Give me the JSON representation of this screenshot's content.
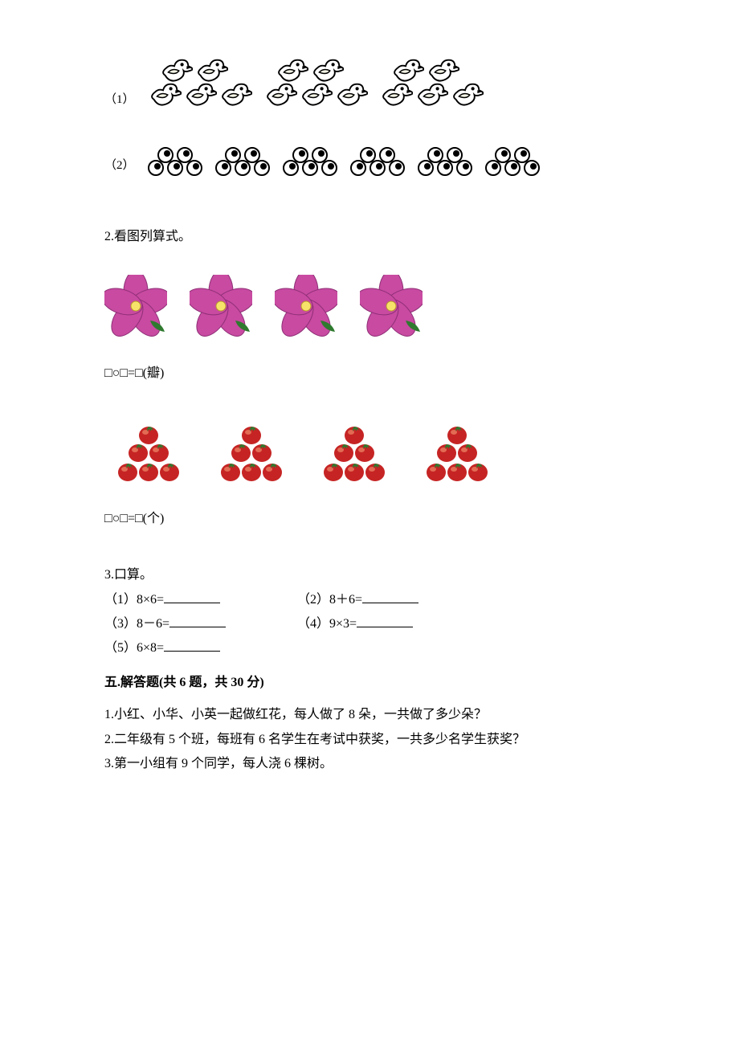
{
  "colors": {
    "text": "#000000",
    "bg": "#ffffff",
    "duck_stroke": "#000000",
    "duck_fill": "#ffffff",
    "duck_wing": "#f5f5e6",
    "eye_stroke": "#000000",
    "eye_pupil": "#000000",
    "flower_petal": "#c84aa1",
    "flower_shadow": "#8e2f76",
    "flower_center": "#f7e36a",
    "flower_leaf": "#2f7a2f",
    "tomato_red": "#c62424",
    "tomato_shine": "#f08a6a",
    "tomato_stem": "#2f7a2f"
  },
  "q1": {
    "label1": "（1）",
    "label2": "（2）",
    "ducks": {
      "groups": 3,
      "rows": 2,
      "top_count": 2,
      "bottom_count": 3
    },
    "eyes": {
      "groups": 6,
      "top_count": 2,
      "bottom_count": 3
    }
  },
  "q2": {
    "title": "2.看图列算式。",
    "flowers": {
      "count": 4,
      "petals_each": 5
    },
    "expr_flowers": "□○□=□(瓣)",
    "tomatoes": {
      "groups": 4,
      "each": 6
    },
    "expr_tomatoes": "□○□=□(个)"
  },
  "q3": {
    "title": "3.口算。",
    "items": [
      {
        "label": "（1）8×6="
      },
      {
        "label": "（2）8＋6="
      },
      {
        "label": "（3）8－6="
      },
      {
        "label": "（4）9×3="
      },
      {
        "label": "（5）6×8="
      }
    ]
  },
  "section5": {
    "heading": "五.解答题(共 6 题，共 30 分)",
    "items": [
      "1.小红、小华、小英一起做红花，每人做了 8 朵，一共做了多少朵？",
      "2.二年级有 5 个班，每班有 6 名学生在考试中获奖，一共多少名学生获奖？",
      "3.第一小组有 9 个同学，每人浇 6 棵树。"
    ]
  }
}
